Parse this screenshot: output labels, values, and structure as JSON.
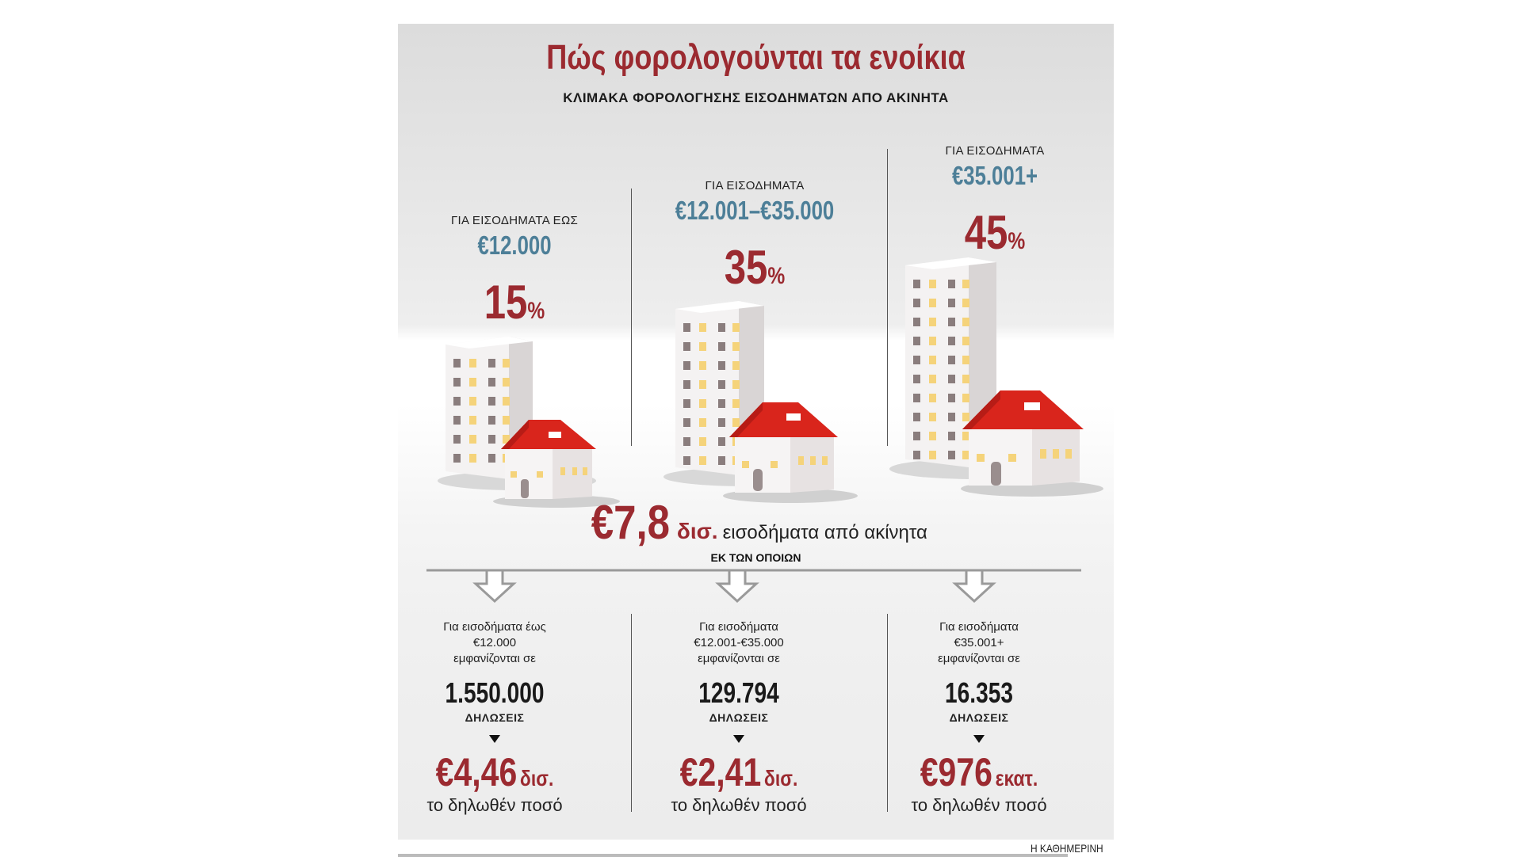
{
  "title": "Πώς φορολογούνται τα ενοίκια",
  "subtitle": "ΚΛΙΜΑΚΑ ΦΟΡΟΛΟΓΗΣΗΣ ΕΙΣΟΔΗΜΑΤΩΝ ΑΠΟ ΑΚΙΝΗΤΑ",
  "brackets": [
    {
      "label": "ΓΙΑ ΕΙΣΟΔΗΜΑΤΑ ΕΩΣ",
      "range": "€12.000",
      "rate": "15",
      "pct": "%"
    },
    {
      "label": "ΓΙΑ ΕΙΣΟΔΗΜΑΤΑ",
      "range": "€12.001–€35.000",
      "rate": "35",
      "pct": "%"
    },
    {
      "label": "ΓΙΑ ΕΙΣΟΔΗΜΑΤΑ",
      "range": "€35.001+",
      "rate": "45",
      "pct": "%"
    }
  ],
  "total": {
    "amount": "€7,8",
    "unit": "δισ.",
    "description": "εισοδήματα από ακίνητα"
  },
  "ek_ton_opoion": "ΕΚ ΤΩΝ ΟΠΟΙΩΝ",
  "stats": [
    {
      "line1": "Για εισοδήματα έως",
      "line2": "€12.000",
      "line3": "εμφανίζονται σε",
      "count": "1.550.000",
      "declarations": "ΔΗΛΩΣΕΙΣ",
      "amount": "€4,46",
      "unit": "δισ.",
      "declared": "το δηλωθέν ποσό"
    },
    {
      "line1": "Για εισοδήματα",
      "line2": "€12.001-€35.000",
      "line3": "εμφανίζονται σε",
      "count": "129.794",
      "declarations": "ΔΗΛΩΣΕΙΣ",
      "amount": "€2,41",
      "unit": "δισ.",
      "declared": "το δηλωθέν ποσό"
    },
    {
      "line1": "Για εισοδήματα",
      "line2": "€35.001+",
      "line3": "εμφανίζονται σε",
      "count": "16.353",
      "declarations": "ΔΗΛΩΣΕΙΣ",
      "amount": "€976",
      "unit": "εκατ.",
      "declared": "το δηλωθέν ποσό"
    }
  ],
  "credit": "Η ΚΑΘΗΜΕΡΙΝΗ",
  "colors": {
    "accent_red": "#9b2a30",
    "range_blue": "#4d7f98",
    "roof_red": "#d9251c",
    "window_yellow": "#f5d37a",
    "window_gray": "#8a7d7d"
  }
}
